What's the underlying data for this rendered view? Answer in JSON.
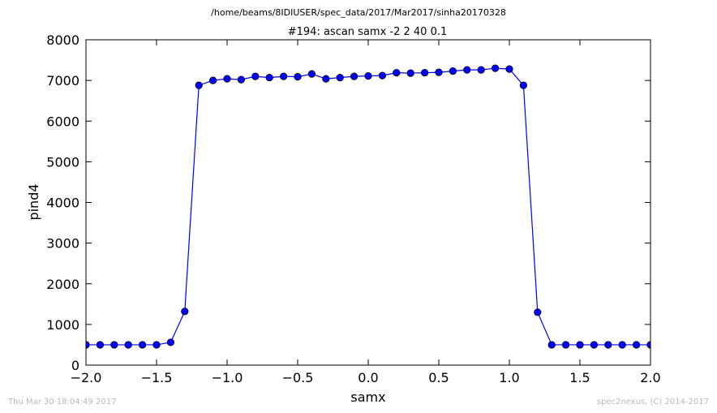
{
  "supertitle": "/home/beams/8IDIUSER/spec_data/2017/Mar2017/sinha20170328",
  "footer_left": "Thu Mar 30 18:04:49 2017",
  "footer_right": "spec2nexus, (C) 2014-2017",
  "chart_data": {
    "type": "line",
    "title": "#194: ascan  samx -2 2  40 0.1",
    "xlabel": "samx",
    "ylabel": "pind4",
    "xlim": [
      -2.0,
      2.0
    ],
    "ylim": [
      0,
      8000
    ],
    "xticks": [
      "−2.0",
      "−1.5",
      "−1.0",
      "−0.5",
      "0.0",
      "0.5",
      "1.0",
      "1.5",
      "2.0"
    ],
    "yticks": [
      "0",
      "1000",
      "2000",
      "3000",
      "4000",
      "5000",
      "6000",
      "7000",
      "8000"
    ],
    "grid": false,
    "marker": "circle",
    "color": "#0000ff",
    "series": [
      {
        "x": [
          -2.0,
          -1.9,
          -1.8,
          -1.7,
          -1.6,
          -1.5,
          -1.4,
          -1.3,
          -1.2,
          -1.1,
          -1.0,
          -0.9,
          -0.8,
          -0.7,
          -0.6,
          -0.5,
          -0.4,
          -0.3,
          -0.2,
          -0.1,
          0.0,
          0.1,
          0.2,
          0.3,
          0.4,
          0.5,
          0.6,
          0.7,
          0.8,
          0.9,
          1.0,
          1.1,
          1.2,
          1.3,
          1.4,
          1.5,
          1.6,
          1.7,
          1.8,
          1.9,
          2.0
        ],
        "y": [
          500,
          500,
          500,
          500,
          500,
          500,
          560,
          1320,
          6880,
          7000,
          7040,
          7020,
          7100,
          7070,
          7100,
          7090,
          7160,
          7040,
          7070,
          7100,
          7110,
          7120,
          7190,
          7180,
          7190,
          7200,
          7230,
          7260,
          7260,
          7300,
          7280,
          6880,
          1300,
          500,
          500,
          500,
          500,
          500,
          500,
          500,
          500
        ]
      }
    ]
  }
}
